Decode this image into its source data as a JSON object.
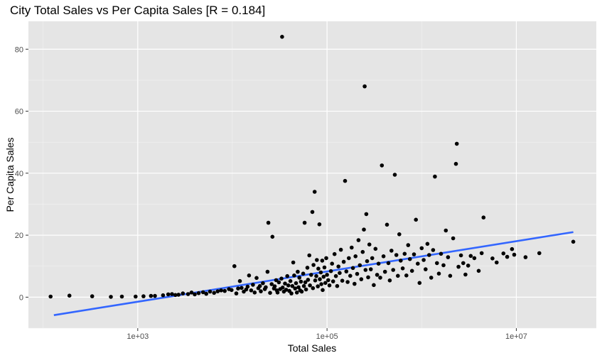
{
  "chart_data": {
    "type": "scatter",
    "title": "City Total Sales vs Per Capita Sales [R = 0.184]",
    "xlabel": "Total Sales",
    "ylabel": "Per Capita Sales",
    "x_scale": "log10",
    "xlim": [
      70,
      70000000
    ],
    "ylim": [
      -10,
      89
    ],
    "x_ticks": [
      1000,
      100000,
      10000000
    ],
    "x_tick_labels": [
      "1e+03",
      "1e+05",
      "1e+07"
    ],
    "x_minor_ticks": [
      100,
      10000,
      1000000
    ],
    "y_ticks": [
      0,
      20,
      40,
      60,
      80
    ],
    "y_tick_labels": [
      "0",
      "20",
      "40",
      "60",
      "80"
    ],
    "y_minor_ticks": [
      -10,
      10,
      30,
      50,
      70
    ],
    "grid": true,
    "panel_color": "#e5e5e5",
    "point_color": "#000000",
    "trend_color": "#3366ff",
    "trend_line": {
      "x": [
        130,
        40000000
      ],
      "y": [
        -5.8,
        21.0
      ]
    },
    "points": [
      [
        120,
        0.2
      ],
      [
        190,
        0.5
      ],
      [
        330,
        0.3
      ],
      [
        520,
        0.1
      ],
      [
        680,
        0.2
      ],
      [
        950,
        0.2
      ],
      [
        1150,
        0.3
      ],
      [
        1380,
        0.4
      ],
      [
        1520,
        0.4
      ],
      [
        1850,
        0.6
      ],
      [
        2100,
        0.9
      ],
      [
        2300,
        1.0
      ],
      [
        2500,
        0.7
      ],
      [
        2700,
        0.8
      ],
      [
        3000,
        1.2
      ],
      [
        3400,
        1.0
      ],
      [
        3700,
        1.5
      ],
      [
        4000,
        0.9
      ],
      [
        4400,
        1.3
      ],
      [
        4900,
        1.6
      ],
      [
        5300,
        1.1
      ],
      [
        5800,
        1.8
      ],
      [
        6400,
        1.4
      ],
      [
        7000,
        1.9
      ],
      [
        7600,
        2.2
      ],
      [
        8300,
        2.0
      ],
      [
        9200,
        2.6
      ],
      [
        9800,
        2.3
      ],
      [
        10500,
        10.0
      ],
      [
        11000,
        1.2
      ],
      [
        11500,
        2.8
      ],
      [
        12000,
        5.2
      ],
      [
        12500,
        3.0
      ],
      [
        13200,
        1.8
      ],
      [
        14000,
        2.5
      ],
      [
        14500,
        3.4
      ],
      [
        15000,
        7.0
      ],
      [
        15800,
        2.2
      ],
      [
        16500,
        4.0
      ],
      [
        17200,
        1.5
      ],
      [
        18000,
        6.2
      ],
      [
        18800,
        2.9
      ],
      [
        19500,
        3.6
      ],
      [
        20000,
        1.9
      ],
      [
        21000,
        4.5
      ],
      [
        22000,
        2.6
      ],
      [
        22500,
        3.2
      ],
      [
        23500,
        8.2
      ],
      [
        24000,
        24.0
      ],
      [
        25000,
        1.4
      ],
      [
        26000,
        4.2
      ],
      [
        26500,
        19.5
      ],
      [
        27500,
        2.8
      ],
      [
        28000,
        3.5
      ],
      [
        29000,
        5.5
      ],
      [
        29500,
        2.2
      ],
      [
        30000,
        1.5
      ],
      [
        31000,
        4.8
      ],
      [
        32000,
        2.6
      ],
      [
        33000,
        6.0
      ],
      [
        33500,
        84.0
      ],
      [
        34000,
        3.1
      ],
      [
        35000,
        1.8
      ],
      [
        36000,
        4.4
      ],
      [
        37000,
        2.4
      ],
      [
        38000,
        6.8
      ],
      [
        39000,
        3.8
      ],
      [
        40000,
        2.0
      ],
      [
        41000,
        5.2
      ],
      [
        42000,
        1.2
      ],
      [
        43000,
        3.6
      ],
      [
        44000,
        11.2
      ],
      [
        45000,
        7.0
      ],
      [
        46000,
        2.8
      ],
      [
        47000,
        4.5
      ],
      [
        48000,
        1.5
      ],
      [
        49000,
        8.2
      ],
      [
        50000,
        3.2
      ],
      [
        51000,
        6.3
      ],
      [
        52000,
        2.2
      ],
      [
        53000,
        5.0
      ],
      [
        54000,
        1.8
      ],
      [
        56000,
        7.6
      ],
      [
        57000,
        3.6
      ],
      [
        58000,
        24.0
      ],
      [
        59000,
        4.8
      ],
      [
        60000,
        2.5
      ],
      [
        62000,
        9.5
      ],
      [
        63000,
        5.6
      ],
      [
        65000,
        13.5
      ],
      [
        66000,
        3.8
      ],
      [
        68000,
        7.2
      ],
      [
        70000,
        27.5
      ],
      [
        71000,
        2.9
      ],
      [
        72000,
        10.4
      ],
      [
        74000,
        34.0
      ],
      [
        75000,
        5.4
      ],
      [
        77000,
        6.8
      ],
      [
        78000,
        12.0
      ],
      [
        80000,
        3.5
      ],
      [
        81000,
        9.2
      ],
      [
        83000,
        23.5
      ],
      [
        84000,
        5.8
      ],
      [
        86000,
        8.0
      ],
      [
        87000,
        4.2
      ],
      [
        89000,
        11.8
      ],
      [
        90000,
        2.3
      ],
      [
        92000,
        6.6
      ],
      [
        94000,
        9.6
      ],
      [
        96000,
        4.6
      ],
      [
        98000,
        12.6
      ],
      [
        100000,
        7.2
      ],
      [
        103000,
        5.5
      ],
      [
        106000,
        3.8
      ],
      [
        110000,
        8.4
      ],
      [
        113000,
        10.8
      ],
      [
        116000,
        5.1
      ],
      [
        120000,
        13.9
      ],
      [
        124000,
        6.8
      ],
      [
        128000,
        3.6
      ],
      [
        132000,
        9.9
      ],
      [
        136000,
        7.8
      ],
      [
        140000,
        15.3
      ],
      [
        145000,
        5.3
      ],
      [
        150000,
        11.4
      ],
      [
        155000,
        37.5
      ],
      [
        160000,
        8.3
      ],
      [
        165000,
        4.9
      ],
      [
        170000,
        12.6
      ],
      [
        176000,
        6.9
      ],
      [
        182000,
        16.0
      ],
      [
        188000,
        9.4
      ],
      [
        195000,
        4.3
      ],
      [
        200000,
        13.2
      ],
      [
        208000,
        7.5
      ],
      [
        215000,
        18.4
      ],
      [
        222000,
        10.3
      ],
      [
        230000,
        5.8
      ],
      [
        238000,
        14.6
      ],
      [
        245000,
        21.8
      ],
      [
        250000,
        68.0
      ],
      [
        255000,
        8.8
      ],
      [
        260000,
        26.8
      ],
      [
        265000,
        11.6
      ],
      [
        272000,
        6.4
      ],
      [
        280000,
        17.0
      ],
      [
        290000,
        9.0
      ],
      [
        300000,
        12.6
      ],
      [
        312000,
        3.9
      ],
      [
        325000,
        15.6
      ],
      [
        338000,
        7.2
      ],
      [
        350000,
        10.8
      ],
      [
        365000,
        6.3
      ],
      [
        380000,
        42.5
      ],
      [
        395000,
        13.2
      ],
      [
        410000,
        8.2
      ],
      [
        430000,
        23.4
      ],
      [
        445000,
        11.0
      ],
      [
        460000,
        5.4
      ],
      [
        480000,
        15.0
      ],
      [
        500000,
        8.8
      ],
      [
        520000,
        39.5
      ],
      [
        540000,
        13.6
      ],
      [
        560000,
        6.9
      ],
      [
        580000,
        20.3
      ],
      [
        600000,
        11.8
      ],
      [
        630000,
        9.3
      ],
      [
        660000,
        14.0
      ],
      [
        690000,
        7.0
      ],
      [
        720000,
        16.8
      ],
      [
        750000,
        12.3
      ],
      [
        790000,
        8.5
      ],
      [
        830000,
        13.8
      ],
      [
        870000,
        25.0
      ],
      [
        910000,
        10.8
      ],
      [
        950000,
        4.6
      ],
      [
        1000000,
        15.8
      ],
      [
        1050000,
        12.0
      ],
      [
        1100000,
        9.0
      ],
      [
        1150000,
        17.2
      ],
      [
        1200000,
        13.6
      ],
      [
        1260000,
        6.3
      ],
      [
        1320000,
        15.2
      ],
      [
        1380000,
        38.9
      ],
      [
        1450000,
        11.0
      ],
      [
        1520000,
        7.6
      ],
      [
        1600000,
        14.0
      ],
      [
        1700000,
        10.3
      ],
      [
        1800000,
        21.5
      ],
      [
        1900000,
        12.9
      ],
      [
        2000000,
        6.9
      ],
      [
        2150000,
        19.0
      ],
      [
        2300000,
        43.0
      ],
      [
        2350000,
        49.5
      ],
      [
        2450000,
        9.8
      ],
      [
        2600000,
        13.5
      ],
      [
        2750000,
        11.0
      ],
      [
        2900000,
        7.3
      ],
      [
        3100000,
        10.2
      ],
      [
        3300000,
        13.3
      ],
      [
        3600000,
        12.6
      ],
      [
        4000000,
        8.5
      ],
      [
        4300000,
        14.2
      ],
      [
        4500000,
        25.7
      ],
      [
        5600000,
        12.5
      ],
      [
        6200000,
        11.2
      ],
      [
        7300000,
        14.1
      ],
      [
        8000000,
        13.0
      ],
      [
        9000000,
        15.5
      ],
      [
        9500000,
        13.7
      ],
      [
        12500000,
        12.9
      ],
      [
        17500000,
        14.2
      ],
      [
        40000000,
        17.9
      ]
    ]
  }
}
